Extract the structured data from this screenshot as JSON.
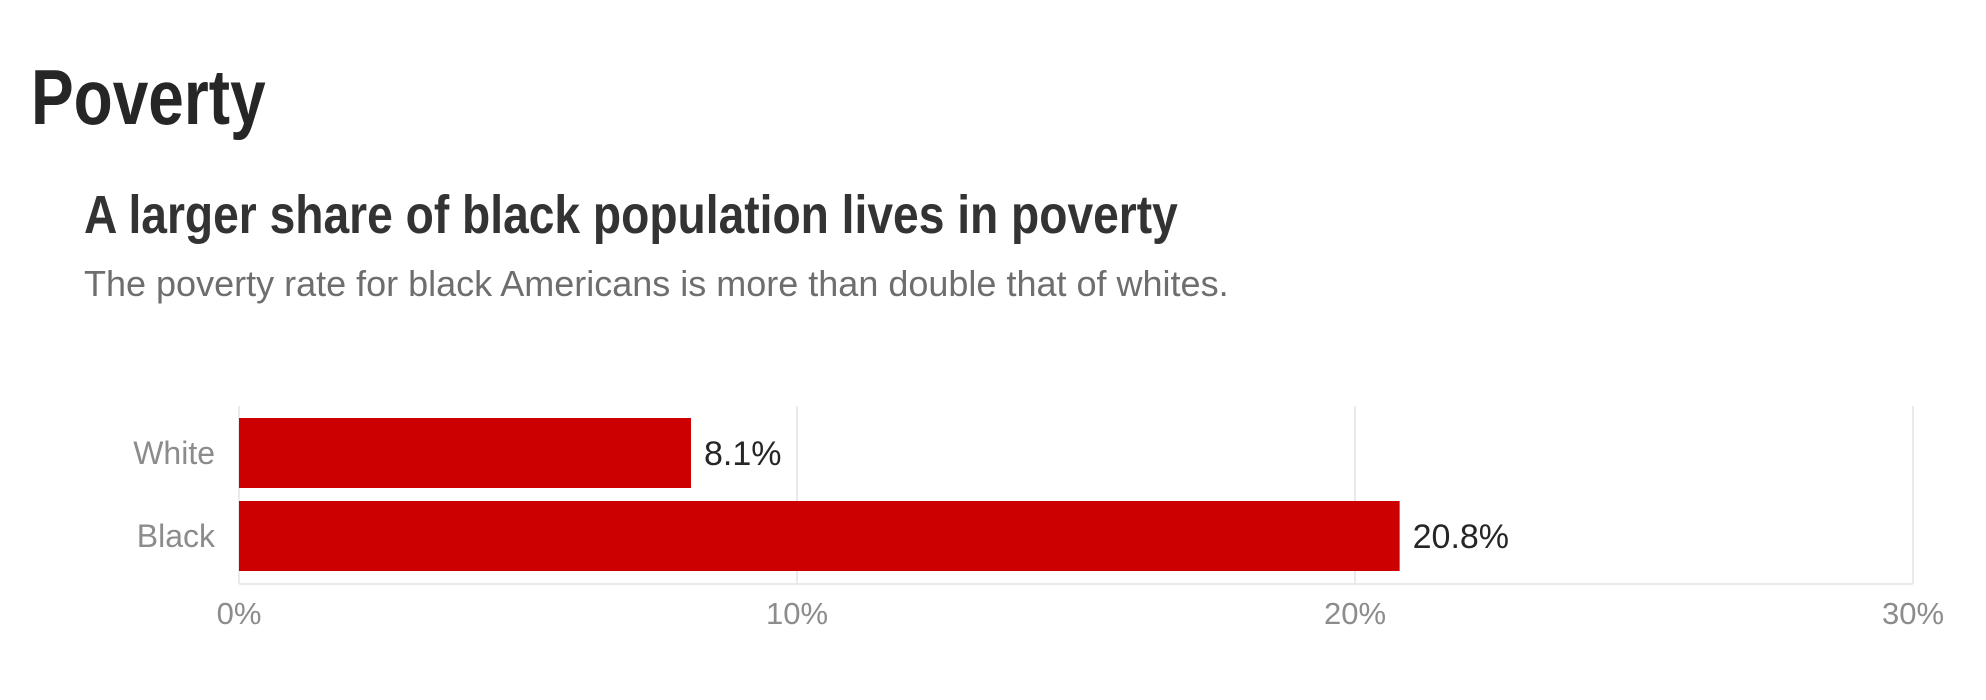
{
  "section": {
    "title": "Poverty"
  },
  "chart_data": {
    "type": "bar",
    "orientation": "horizontal",
    "title": "A larger share of black population lives in poverty",
    "subtitle": "The poverty rate for black Americans is more than double that of whites.",
    "categories": [
      "White",
      "Black"
    ],
    "values": [
      8.1,
      20.8
    ],
    "value_labels": [
      "8.1%",
      "20.8%"
    ],
    "xlim": [
      0,
      30
    ],
    "ticks": [
      0,
      10,
      20,
      30
    ],
    "tick_labels": [
      "0%",
      "10%",
      "20%",
      "30%"
    ],
    "xlabel": "",
    "ylabel": "",
    "grid": true,
    "bar_color": "#cc0000"
  }
}
